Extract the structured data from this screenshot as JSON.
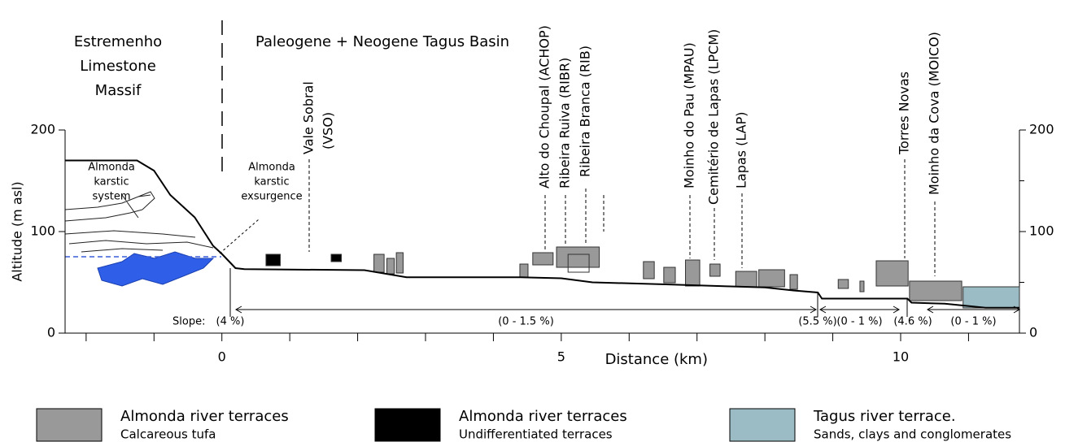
{
  "chart_data": {
    "type": "profile",
    "region_left": [
      "Estremenho",
      "Limestone",
      "Massif"
    ],
    "region_right": "Paleogene + Neogene Tagus Basin",
    "ylabel": "Altitude (m asl)",
    "xlabel": "Distance (km)",
    "xlim": [
      -2.31,
      11.75
    ],
    "ylim": [
      0,
      200
    ],
    "xticks": [
      0,
      5,
      10
    ],
    "xminorticks": [
      -2,
      -1,
      1,
      2,
      3,
      4,
      6,
      7,
      8,
      9,
      11
    ],
    "yticks": [
      0,
      100,
      200
    ],
    "y2minorticks": [
      50,
      150
    ],
    "karst_label": [
      "Almonda",
      "karstic",
      "system"
    ],
    "exsurgence_label": [
      "Almonda",
      "karstic",
      "exsurgence"
    ],
    "sites": [
      [
        "Vale Sobral",
        "(VSO)"
      ],
      [
        "Alto do Choupal (ACHOP)"
      ],
      [
        "Ribeira Ruiva (RIBR)"
      ],
      [
        "Ribeira Branca (RIB)"
      ],
      [
        "Moinho do Pau (MPAU)"
      ],
      [
        "Cemitério de Lapas (LPCM)"
      ],
      [
        "Lapas (LAP)"
      ],
      [
        "Torres Novas"
      ],
      [
        "Moinho da Cova (MOICO)"
      ]
    ],
    "slope_title": "Slope:",
    "slopes": [
      "(4 %)",
      "(0 - 1.5 %)",
      "(5.5 %)",
      "(0 - 1 %)",
      "(4.6 %)",
      "(0 - 1 %)"
    ],
    "profile": {
      "color": "#000000",
      "x": [
        -2.31,
        -1.25,
        -1.0,
        -0.76,
        -0.4,
        -0.13,
        0,
        0.2,
        0.33,
        2.1,
        2.72,
        4.4,
        5.0,
        5.46,
        6.54,
        7.5,
        8.0,
        8.42,
        8.78,
        8.84,
        10.1,
        10.16,
        10.65,
        11.25,
        11.75
      ],
      "y": [
        170,
        170,
        160,
        136,
        114,
        86,
        78,
        64,
        63,
        62,
        55,
        55,
        54,
        50,
        48,
        46,
        45,
        42,
        40,
        34,
        34,
        30,
        29,
        25,
        25
      ]
    },
    "terraces": [
      {
        "name": "Almonda river terraces",
        "subtitle": "Calcareous tufa",
        "color": "#999999",
        "boxes": [
          {
            "x": [
              2.24,
              2.39
            ],
            "y": [
              60,
              77.6
            ]
          },
          {
            "x": [
              2.43,
              2.54
            ],
            "y": [
              58.4,
              73.6
            ]
          },
          {
            "x": [
              2.57,
              2.67
            ],
            "y": [
              59.2,
              79.2
            ]
          },
          {
            "x": [
              4.39,
              4.51
            ],
            "y": [
              55.2,
              68
            ]
          },
          {
            "x": [
              4.58,
              4.88
            ],
            "y": [
              67.2,
              79.2
            ]
          },
          {
            "x": [
              4.93,
              5.56
            ],
            "y": [
              64.8,
              84.8
            ]
          },
          {
            "x": [
              5.1,
              5.41
            ],
            "y": [
              60,
              77.6
            ]
          },
          {
            "x": [
              6.21,
              6.37
            ],
            "y": [
              53.6,
              70.4
            ]
          },
          {
            "x": [
              6.51,
              6.68
            ],
            "y": [
              49.6,
              64.8
            ]
          },
          {
            "x": [
              6.83,
              7.04
            ],
            "y": [
              46.4,
              72
            ]
          },
          {
            "x": [
              7.19,
              7.34
            ],
            "y": [
              56,
              68
            ]
          },
          {
            "x": [
              7.57,
              7.88
            ],
            "y": [
              45.6,
              60.8
            ]
          },
          {
            "x": [
              7.91,
              8.29
            ],
            "y": [
              45.6,
              62.4
            ]
          },
          {
            "x": [
              8.37,
              8.48
            ],
            "y": [
              43.2,
              57.6
            ]
          },
          {
            "x": [
              9.08,
              9.23
            ],
            "y": [
              44,
              52.8
            ]
          },
          {
            "x": [
              9.4,
              9.46
            ],
            "y": [
              40.8,
              51.2
            ]
          },
          {
            "x": [
              9.64,
              10.11
            ],
            "y": [
              46.4,
              71.2
            ]
          },
          {
            "x": [
              10.13,
              10.9
            ],
            "y": [
              32,
              51.2
            ]
          }
        ]
      },
      {
        "name": "Almonda river terraces",
        "subtitle": "Undifferentiated terraces",
        "color": "#000000",
        "boxes": [
          {
            "x": [
              0.65,
              0.86
            ],
            "y": [
              66.4,
              77.6
            ]
          },
          {
            "x": [
              1.61,
              1.76
            ],
            "y": [
              70.4,
              77.6
            ]
          }
        ]
      },
      {
        "name": "Tagus river terrace.",
        "subtitle": "Sands, clays and conglomerates",
        "color": "#9bbcc4",
        "boxes": [
          {
            "x": [
              10.92,
              11.75
            ],
            "y": [
              24.8,
              45.6
            ]
          }
        ]
      }
    ]
  }
}
